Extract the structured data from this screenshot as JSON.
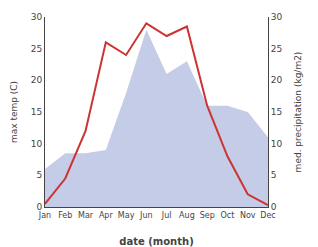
{
  "chart_data": {
    "type": "line",
    "categories": [
      "Jan",
      "Feb",
      "Mar",
      "Apr",
      "May",
      "Jun",
      "Jul",
      "Aug",
      "Sep",
      "Oct",
      "Nov",
      "Dec"
    ],
    "series": [
      {
        "type": "area",
        "color": "#c5cce8",
        "values": [
          6.0,
          8.5,
          8.5,
          9.0,
          18.0,
          28.0,
          21.0,
          23.0,
          16.0,
          16.0,
          15.0,
          11.0
        ]
      },
      {
        "type": "line",
        "color": "#cc3333",
        "values": [
          0.5,
          4.5,
          12.0,
          26.0,
          24.0,
          29.0,
          27.0,
          28.5,
          16.0,
          8.0,
          2.0,
          0.3
        ]
      }
    ],
    "xlabel": "date (month)",
    "ylabel": "max temp (C)",
    "y2label": "med. precipitation (kg/m2)",
    "ylim": [
      0,
      30
    ],
    "yticks": [
      0,
      5,
      10,
      15,
      20,
      25,
      30
    ],
    "y2lim": [
      0,
      30
    ],
    "y2ticks": [
      0,
      5,
      10,
      15,
      20,
      25,
      30
    ],
    "grid": false
  }
}
